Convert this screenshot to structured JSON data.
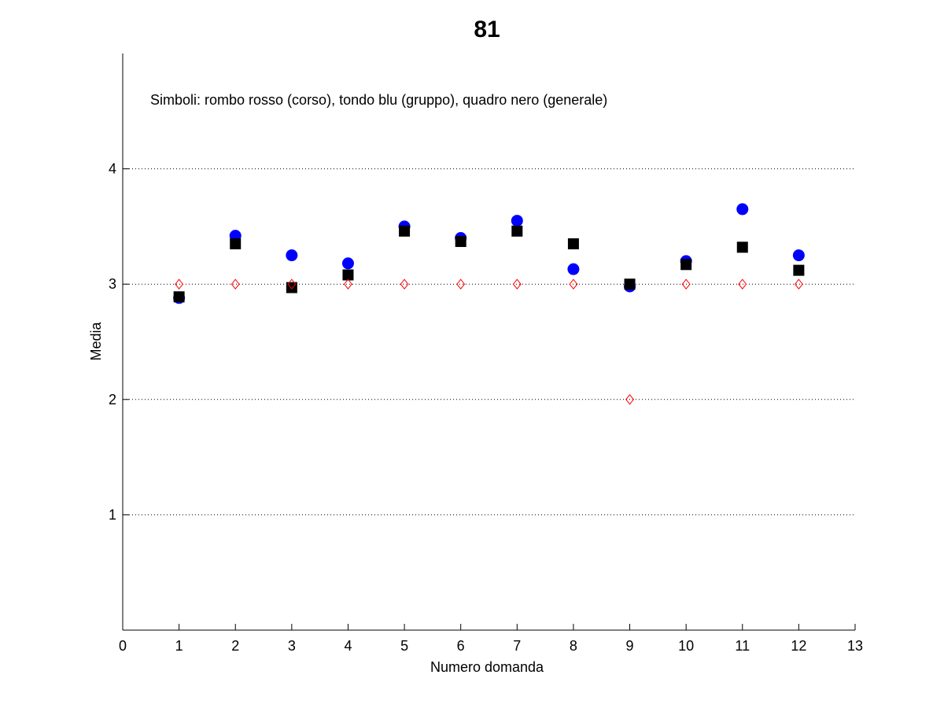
{
  "chart_data": {
    "type": "scatter",
    "title": "81",
    "xlabel": "Numero domanda",
    "ylabel": "Media",
    "annotation": "Simboli: rombo rosso (corso), tondo blu (gruppo), quadro nero (generale)",
    "xlim": [
      0,
      13
    ],
    "ylim": [
      0,
      5
    ],
    "xticks": [
      0,
      1,
      2,
      3,
      4,
      5,
      6,
      7,
      8,
      9,
      10,
      11,
      12,
      13
    ],
    "yticks": [
      1,
      2,
      3,
      4
    ],
    "grid_y": true,
    "legend": "none",
    "series": [
      {
        "key": "corso",
        "marker": "diamond",
        "filled": false,
        "color": "#ff0000",
        "x": [
          1,
          2,
          3,
          4,
          5,
          6,
          7,
          8,
          9,
          10,
          11,
          12
        ],
        "values": [
          3,
          3,
          3,
          3,
          3,
          3,
          3,
          3,
          2,
          3,
          3,
          3
        ]
      },
      {
        "key": "gruppo",
        "marker": "circle",
        "filled": true,
        "color": "#0000ff",
        "x": [
          1,
          2,
          3,
          4,
          5,
          6,
          7,
          8,
          9,
          10,
          11,
          12
        ],
        "values": [
          2.88,
          3.42,
          3.25,
          3.18,
          3.5,
          3.4,
          3.55,
          3.13,
          2.98,
          3.2,
          3.65,
          3.25
        ]
      },
      {
        "key": "generale",
        "marker": "square",
        "filled": true,
        "color": "#000000",
        "x": [
          1,
          2,
          3,
          4,
          5,
          6,
          7,
          8,
          9,
          10,
          11,
          12
        ],
        "values": [
          2.89,
          3.35,
          2.97,
          3.08,
          3.46,
          3.37,
          3.46,
          3.35,
          3.0,
          3.17,
          3.32,
          3.12
        ]
      }
    ]
  }
}
